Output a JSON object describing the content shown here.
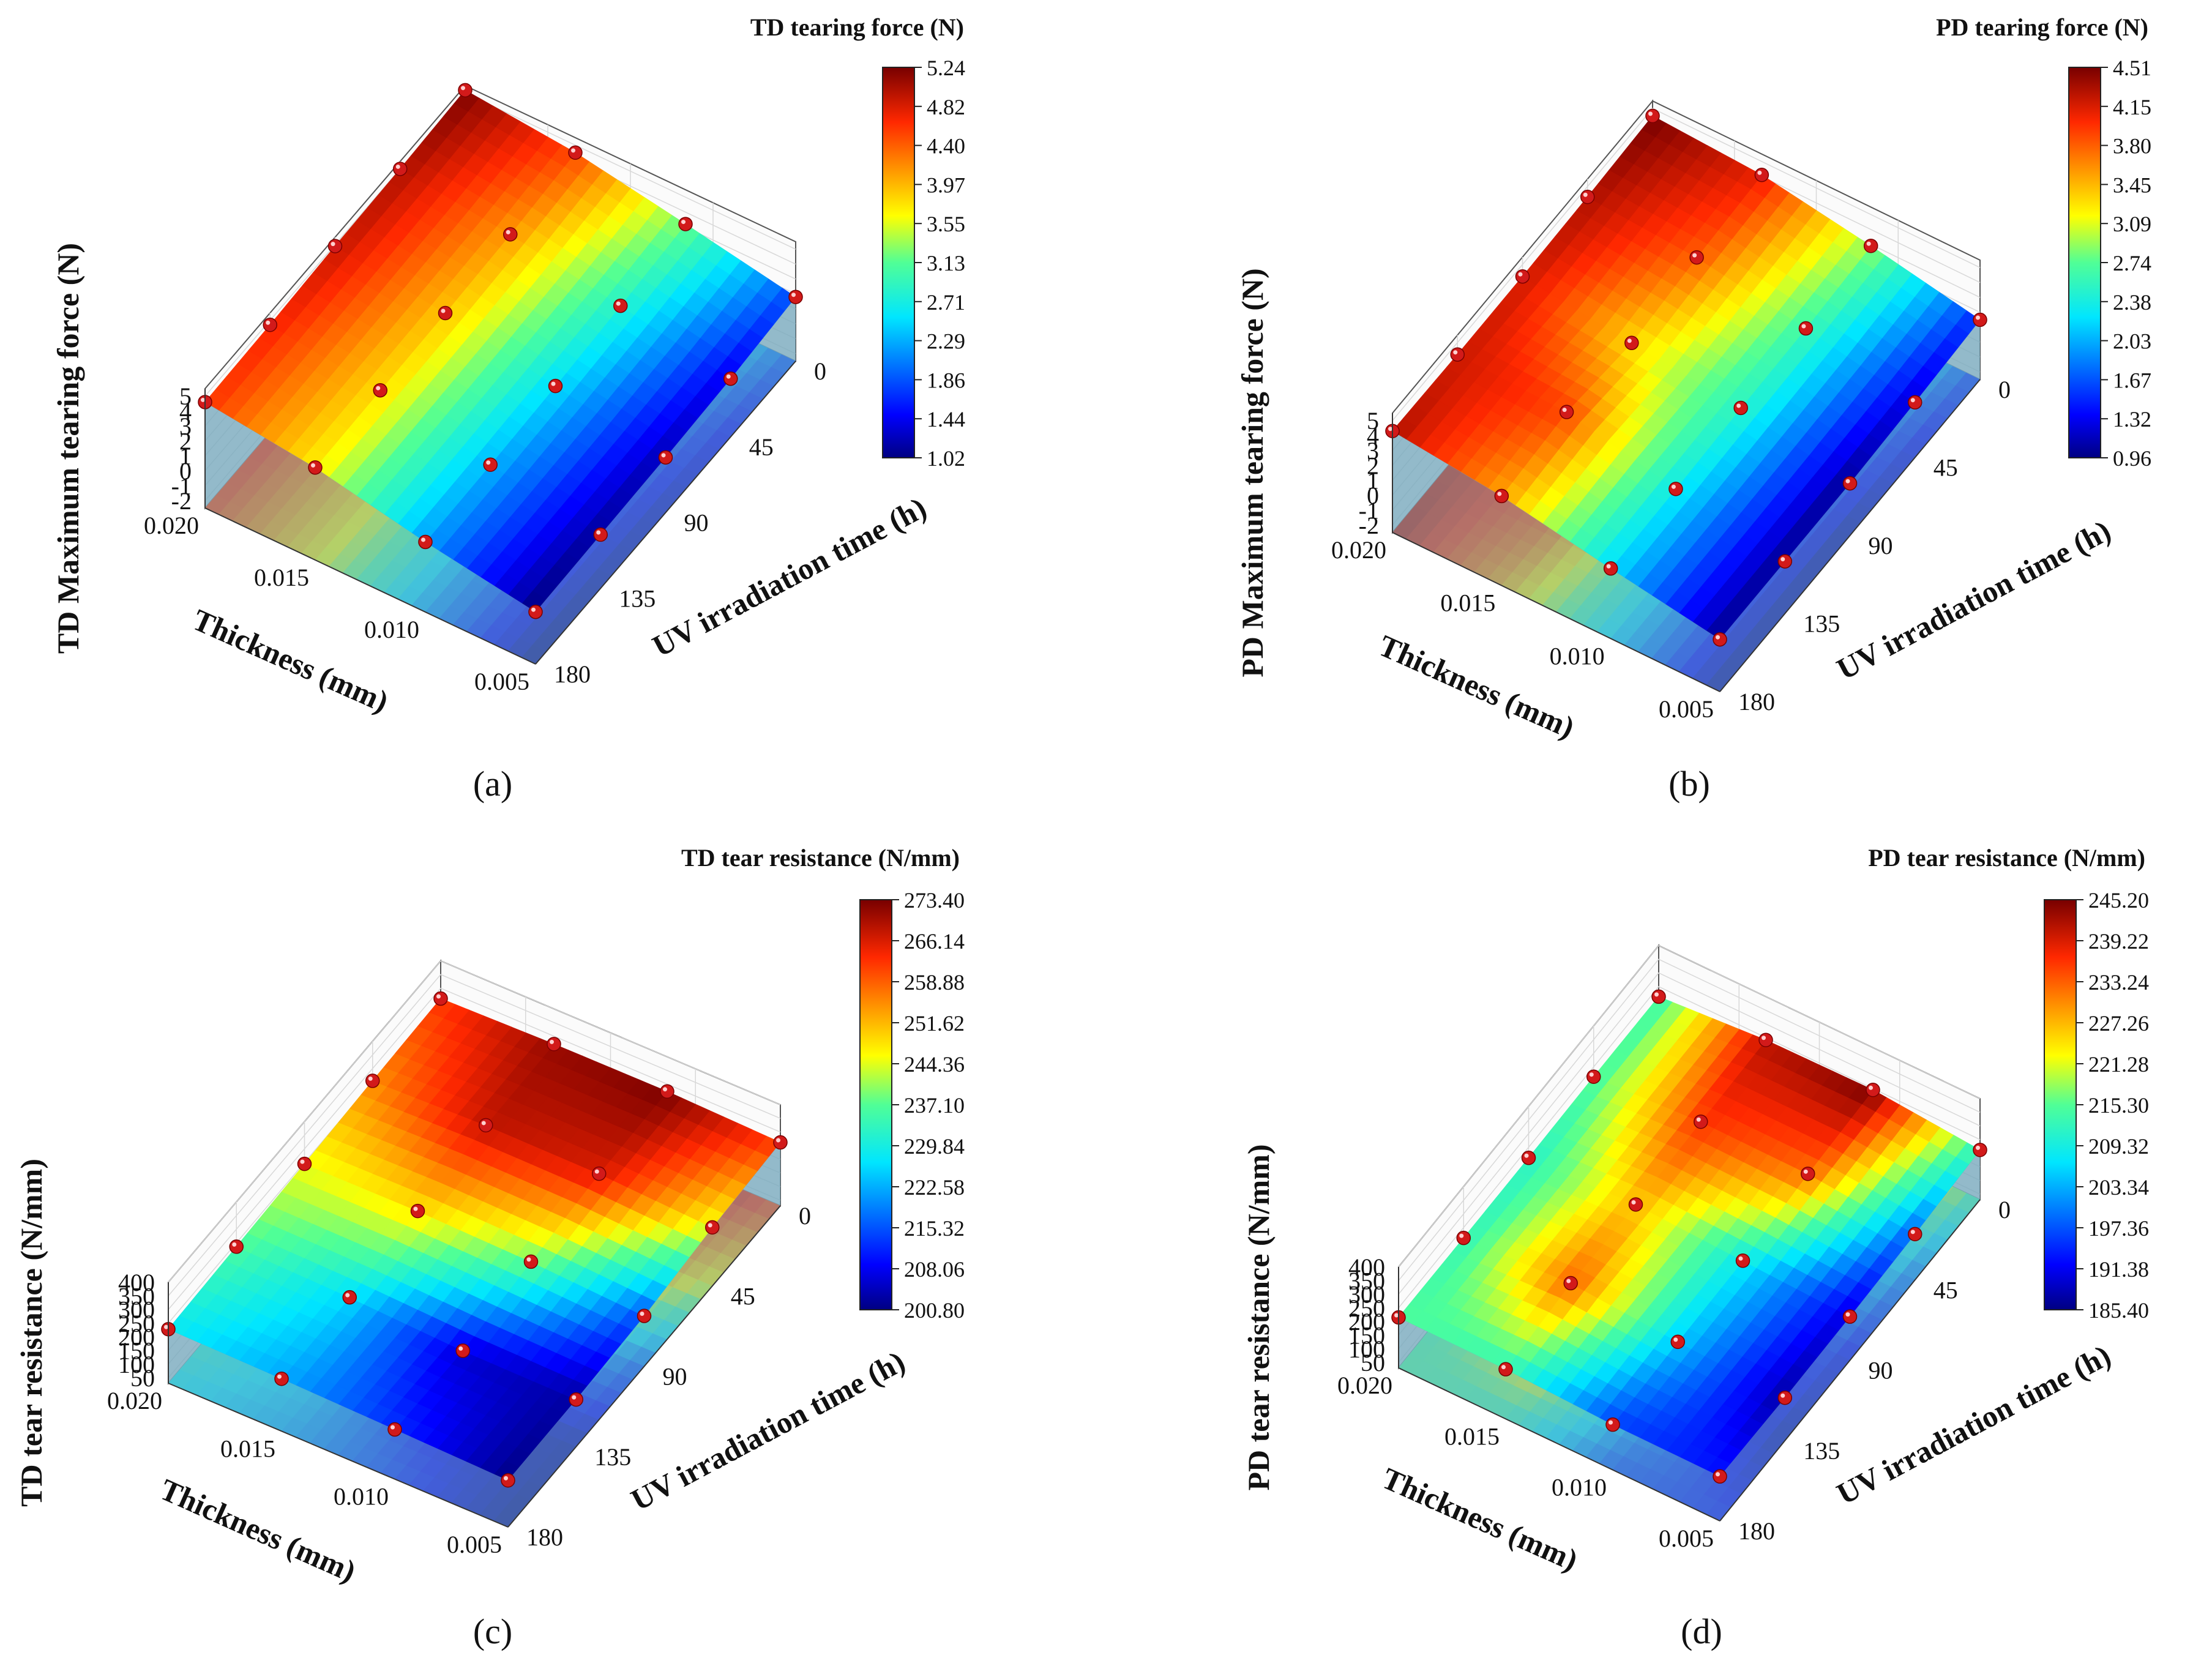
{
  "figure_labels": [
    "(a)",
    "(b)",
    "(c)",
    "(d)"
  ],
  "chart_data": [
    {
      "type": "surface3d",
      "panel": "(a)",
      "zlabel": "TD Maximum tearing force (N)",
      "xlabel": "Thickness (mm)",
      "ylabel": "UV irradiation time  (h)",
      "colorbar_title": "TD tearing force (N)",
      "colorbar_ticks": [
        "5.24",
        "4.82",
        "4.40",
        "3.97",
        "3.55",
        "3.13",
        "2.71",
        "2.29",
        "1.86",
        "1.44",
        "1.02"
      ],
      "z_ticks": [
        "5",
        "4",
        "3",
        "2",
        "1",
        "0",
        "-1",
        "-2"
      ],
      "thickness_ticks": [
        "0.020",
        "0.015",
        "0.010",
        "0.005"
      ],
      "time_ticks": [
        "0",
        "45",
        "90",
        "135",
        "180"
      ],
      "zlim": [
        -2.5,
        5.5
      ],
      "thickness": [
        0.02,
        0.015,
        0.01,
        0.005
      ],
      "time": [
        0,
        45,
        90,
        135,
        180
      ],
      "values": [
        [
          5.2,
          5.0,
          4.9,
          4.7,
          4.6
        ],
        [
          4.5,
          4.1,
          3.9,
          3.8,
          3.7
        ],
        [
          3.2,
          2.8,
          2.5,
          2.3,
          2.2
        ],
        [
          1.8,
          1.4,
          1.2,
          1.1,
          1.0
        ]
      ]
    },
    {
      "type": "surface3d",
      "panel": "(b)",
      "zlabel": "PD Maximum tearing force (N)",
      "xlabel": "Thickness (mm)",
      "ylabel": "UV irradiation time  (h)",
      "colorbar_title": "PD tearing force (N)",
      "colorbar_ticks": [
        "4.51",
        "4.15",
        "3.80",
        "3.45",
        "3.09",
        "2.74",
        "2.38",
        "2.03",
        "1.67",
        "1.32",
        "0.96"
      ],
      "z_ticks": [
        "5",
        "4",
        "3",
        "2",
        "1",
        "0",
        "-1",
        "-2"
      ],
      "thickness_ticks": [
        "0.020",
        "0.015",
        "0.010",
        "0.005"
      ],
      "time_ticks": [
        "0",
        "45",
        "90",
        "135",
        "180"
      ],
      "zlim": [
        -2.5,
        5.5
      ],
      "thickness": [
        0.02,
        0.015,
        0.01,
        0.005
      ],
      "time": [
        0,
        45,
        90,
        135,
        180
      ],
      "values": [
        [
          4.5,
          4.3,
          4.2,
          4.2,
          4.3
        ],
        [
          4.1,
          3.8,
          3.3,
          3.9,
          3.5
        ],
        [
          2.9,
          2.6,
          2.5,
          2.3,
          2.2
        ],
        [
          1.5,
          1.2,
          1.0,
          1.0,
          1.0
        ]
      ]
    },
    {
      "type": "surface3d",
      "panel": "(c)",
      "zlabel": "TD tear resistance (N/mm)",
      "xlabel": "Thickness (mm)",
      "ylabel": "UV irradiation time  (h)",
      "colorbar_title": "TD tear resistance (N/mm)",
      "colorbar_ticks": [
        "273.40",
        "266.14",
        "258.88",
        "251.62",
        "244.36",
        "237.10",
        "229.84",
        "222.58",
        "215.32",
        "208.06",
        "200.80"
      ],
      "z_ticks": [
        "400",
        "350",
        "300",
        "250",
        "200",
        "150",
        "100",
        "50"
      ],
      "thickness_ticks": [
        "0.020",
        "0.015",
        "0.010",
        "0.005"
      ],
      "time_ticks": [
        "0",
        "45",
        "90",
        "135",
        "180"
      ],
      "zlim": [
        30,
        400
      ],
      "thickness": [
        0.02,
        0.015,
        0.01,
        0.005
      ],
      "time": [
        0,
        45,
        90,
        135,
        180
      ],
      "values": [
        [
          262,
          255,
          245,
          236,
          228
        ],
        [
          271,
          268,
          248,
          226,
          222
        ],
        [
          273,
          266,
          238,
          206,
          212
        ],
        [
          262,
          245,
          215,
          203,
          201
        ]
      ]
    },
    {
      "type": "surface3d",
      "panel": "(d)",
      "zlabel": "PD tear resistance (N/mm)",
      "xlabel": "Thickness (mm)",
      "ylabel": "UV irradiation time  (h)",
      "colorbar_title": "PD tear resistance (N/mm)",
      "colorbar_ticks": [
        "245.20",
        "239.22",
        "233.24",
        "227.26",
        "221.28",
        "215.30",
        "209.32",
        "203.34",
        "197.36",
        "191.38",
        "185.40"
      ],
      "z_ticks": [
        "400",
        "350",
        "300",
        "250",
        "200",
        "150",
        "100",
        "50"
      ],
      "thickness_ticks": [
        "0.020",
        "0.015",
        "0.010",
        "0.005"
      ],
      "time_ticks": [
        "0",
        "45",
        "90",
        "135",
        "180"
      ],
      "zlim": [
        30,
        400
      ],
      "thickness": [
        0.02,
        0.015,
        0.01,
        0.005
      ],
      "time": [
        0,
        45,
        90,
        135,
        180
      ],
      "values": [
        [
          213,
          214,
          211,
          212,
          215
        ],
        [
          241,
          236,
          227,
          233,
          212
        ],
        [
          245,
          232,
          208,
          205,
          196
        ],
        [
          212,
          198,
          190,
          187,
          193
        ]
      ]
    }
  ]
}
